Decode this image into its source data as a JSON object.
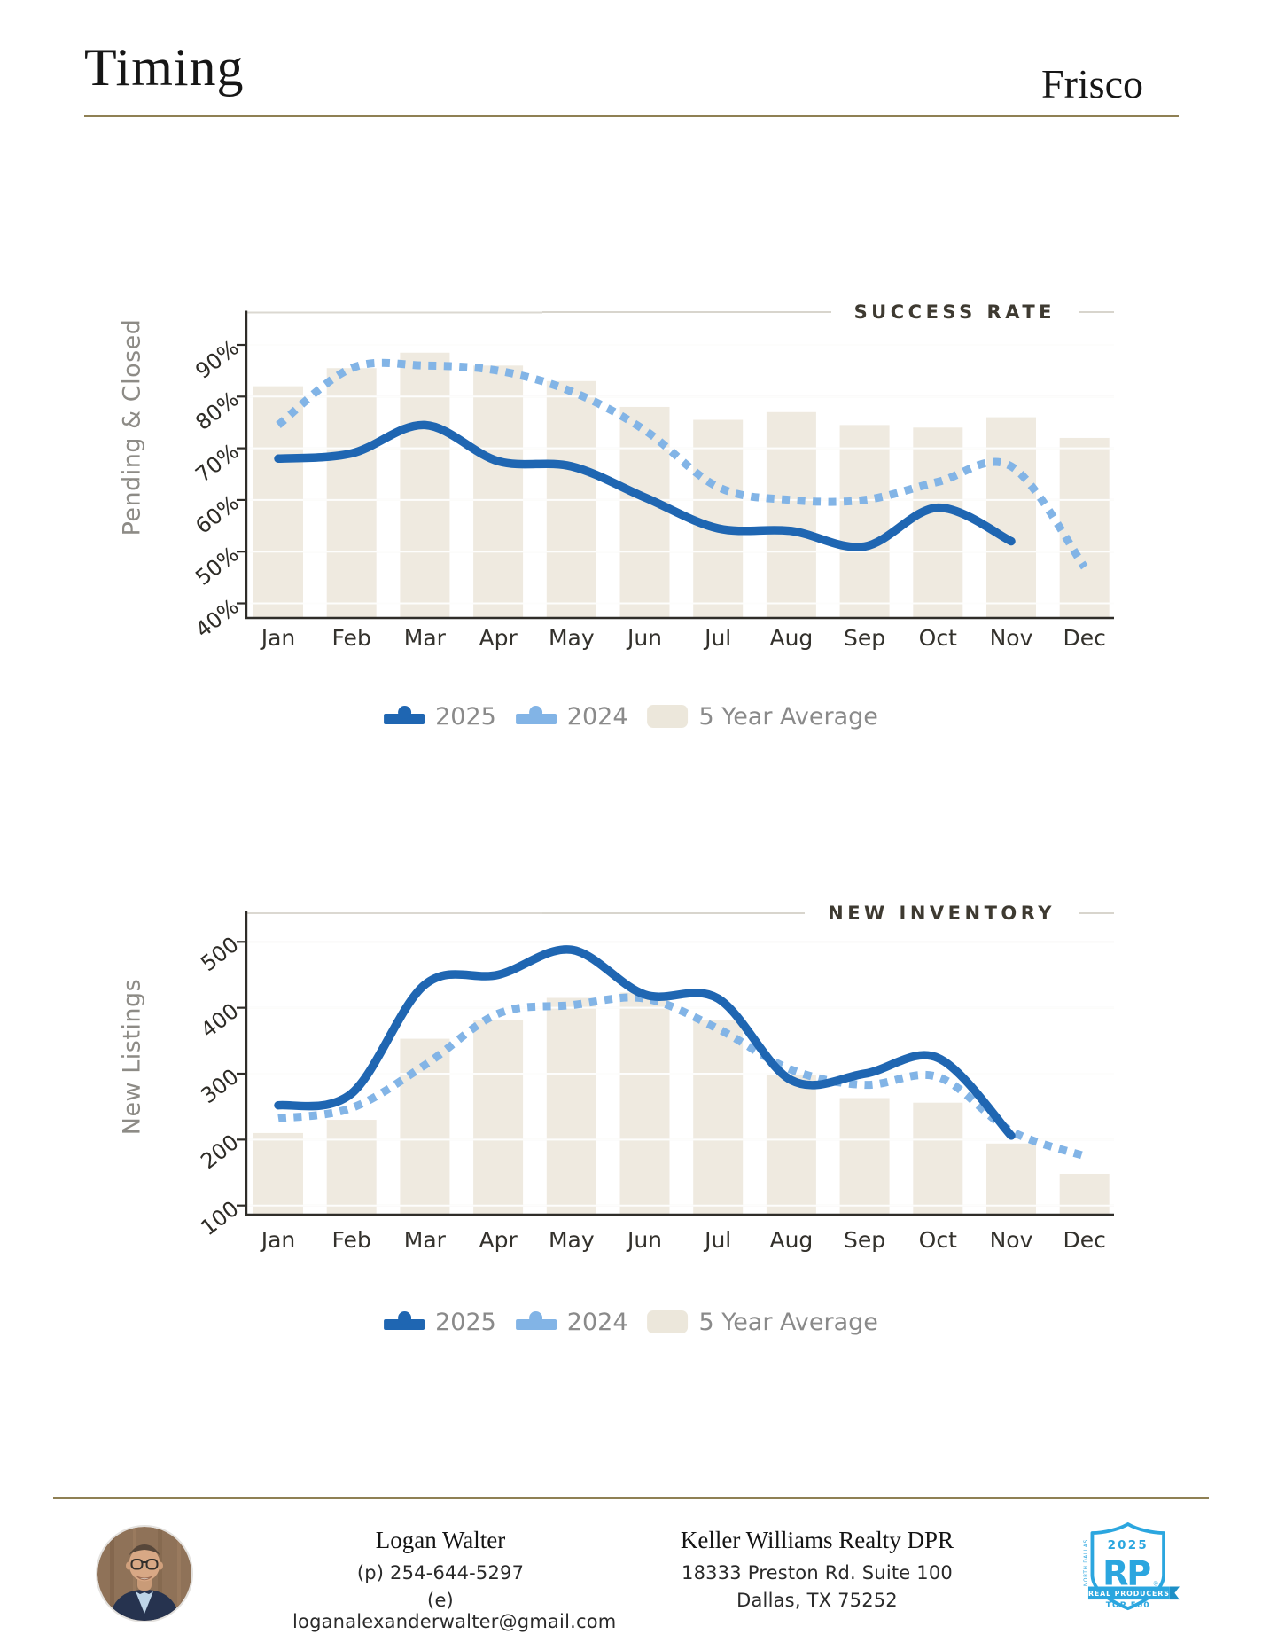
{
  "page": {
    "title": "Timing",
    "location": "Frisco"
  },
  "chart_data": [
    {
      "type": "bar+line",
      "title": "SUCCESS RATE",
      "ylabel": "Pending & Closed",
      "unit": "%",
      "categories": [
        "Jan",
        "Feb",
        "Mar",
        "Apr",
        "May",
        "Jun",
        "Jul",
        "Aug",
        "Sep",
        "Oct",
        "Nov",
        "Dec"
      ],
      "y_ticks": [
        90,
        80,
        70,
        60,
        50,
        40
      ],
      "ylim": [
        37,
        96
      ],
      "grid": true,
      "legend_position": "bottom",
      "series": [
        {
          "name": "2025",
          "type": "line",
          "style": "solid",
          "color": "#1F66B2",
          "values": [
            68,
            69,
            74.5,
            67.5,
            66.5,
            60.5,
            54.5,
            54,
            51,
            58.5,
            52,
            null
          ]
        },
        {
          "name": "2024",
          "type": "line",
          "style": "dotted",
          "color": "#82B4E6",
          "values": [
            74.5,
            85.5,
            86,
            85,
            81,
            73.5,
            62.5,
            60,
            60,
            63.5,
            66.5,
            47
          ]
        },
        {
          "name": "5 Year Average",
          "type": "bar",
          "color": "#EFEAE0",
          "values": [
            82,
            85.5,
            88.5,
            86,
            83,
            78,
            75.5,
            77,
            74.5,
            74,
            76,
            72
          ]
        }
      ]
    },
    {
      "type": "bar+line",
      "title": "NEW INVENTORY",
      "ylabel": "New Listings",
      "unit": "",
      "categories": [
        "Jan",
        "Feb",
        "Mar",
        "Apr",
        "May",
        "Jun",
        "Jul",
        "Aug",
        "Sep",
        "Oct",
        "Nov",
        "Dec"
      ],
      "y_ticks": [
        500,
        400,
        300,
        200,
        100
      ],
      "ylim": [
        86,
        544
      ],
      "grid": true,
      "legend_position": "bottom",
      "series": [
        {
          "name": "2025",
          "type": "line",
          "style": "solid",
          "color": "#1F66B2",
          "values": [
            252,
            270,
            435,
            450,
            488,
            420,
            414,
            290,
            300,
            324,
            206,
            null
          ]
        },
        {
          "name": "2024",
          "type": "line",
          "style": "dotted",
          "color": "#82B4E6",
          "values": [
            232,
            248,
            313,
            391,
            404,
            414,
            368,
            306,
            283,
            295,
            213,
            175
          ]
        },
        {
          "name": "5 Year Average",
          "type": "bar",
          "color": "#EFEAE0",
          "values": [
            210,
            230,
            353,
            382,
            415,
            423,
            381,
            300,
            263,
            256,
            194,
            148
          ]
        }
      ]
    }
  ],
  "legend": {
    "items": [
      {
        "label": "2025",
        "color": "#1F66B2",
        "icon": "line-dot-marker"
      },
      {
        "label": "2024",
        "color": "#82B4E6",
        "icon": "line-dot-marker"
      },
      {
        "label": "5 Year Average",
        "color": "#ECE7DB",
        "icon": "bar-swatch"
      }
    ]
  },
  "footer": {
    "agent": {
      "name": "Logan Walter",
      "phone": "(p) 254-644-5297",
      "email": "(e) loganalexanderwalter@gmail.com"
    },
    "office": {
      "name": "Keller Williams Realty DPR",
      "address_line1": "18333 Preston Rd. Suite 100",
      "address_line2": "Dallas, TX 75252"
    },
    "badge": {
      "year": "2025",
      "initials": "RP",
      "ribbon": "REAL PRODUCERS",
      "tier": "TOP 500",
      "region": "NORTH DALLAS",
      "color": "#2BA6DF"
    },
    "photo": "headshot"
  },
  "colors": {
    "accent_blue": "#1F66B2",
    "light_blue": "#82B4E6",
    "bar_beige": "#EFEAE0",
    "rule_tan": "#8F8054",
    "title_dark": "#3E3A31",
    "text_gray": "#8A8A8A",
    "badge_blue": "#2BA6DF"
  }
}
